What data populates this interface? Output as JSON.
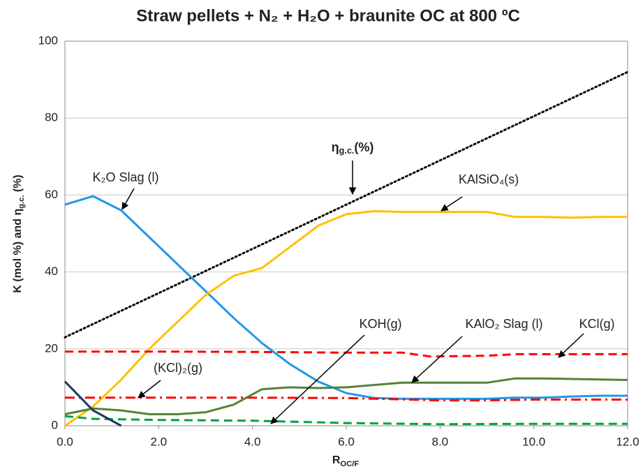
{
  "chart_data": {
    "type": "line",
    "title": "Straw pellets + N₂ + H₂O + braunite OC at 800 ºC",
    "xlabel": [
      "R",
      "OC/F"
    ],
    "ylabel": [
      "K (mol %) and η",
      "g.c.",
      " (%)"
    ],
    "xlim": [
      0,
      12
    ],
    "ylim": [
      0,
      100
    ],
    "xticks": [
      {
        "value": 0,
        "label": "0.0"
      },
      {
        "value": 2,
        "label": "2.0"
      },
      {
        "value": 4,
        "label": "4.0"
      },
      {
        "value": 6,
        "label": "6.0"
      },
      {
        "value": 8,
        "label": "8.0"
      },
      {
        "value": 10,
        "label": "10.0"
      },
      {
        "value": 12,
        "label": "12.0"
      }
    ],
    "yticks": [
      0,
      20,
      40,
      60,
      80,
      100
    ],
    "grid": true,
    "series": [
      {
        "color": "#000000",
        "style": "dotted",
        "x": [
          0,
          12
        ],
        "values": [
          23,
          92
        ]
      },
      {
        "color": "#2196e8",
        "style": "solid",
        "x": [
          0,
          0.6,
          1.2,
          1.8,
          2.4,
          3.0,
          3.6,
          4.2,
          4.8,
          5.4,
          6.0,
          6.6,
          7.2,
          8.0,
          9.0,
          9.6,
          10.2,
          10.8,
          11.4,
          12
        ],
        "values": [
          57.5,
          59.7,
          56,
          49,
          42,
          35,
          28,
          21.5,
          16,
          11.5,
          8.5,
          7.2,
          7,
          7,
          7,
          7.3,
          7.3,
          7.6,
          7.8,
          7.8
        ]
      },
      {
        "color": "#ffc000",
        "style": "solid",
        "x": [
          0,
          0.6,
          1.2,
          1.8,
          2.4,
          3.0,
          3.6,
          4.2,
          4.8,
          5.4,
          6.0,
          6.6,
          7.2,
          8.0,
          9.0,
          9.6,
          10.2,
          10.8,
          11.4,
          12
        ],
        "values": [
          0,
          5,
          12,
          20,
          27,
          34,
          39,
          41,
          46.5,
          52,
          55,
          55.8,
          55.6,
          55.6,
          55.6,
          54.3,
          54.3,
          54.1,
          54.3,
          54.3
        ]
      },
      {
        "color": "#ff0000",
        "style": "dashed",
        "x": [
          0,
          2,
          4,
          6,
          7.2,
          7.8,
          9,
          9.6,
          12
        ],
        "values": [
          19.3,
          19.3,
          19.2,
          19,
          19,
          18,
          18.2,
          18.6,
          18.6
        ]
      },
      {
        "color": "#ff0000",
        "style": "dashdot",
        "x": [
          0,
          4,
          6,
          8,
          9,
          10,
          12
        ],
        "values": [
          7.3,
          7.3,
          7.2,
          6.6,
          6.6,
          6.8,
          6.8
        ]
      },
      {
        "color": "#548235",
        "style": "solid",
        "x": [
          0,
          0.6,
          1.2,
          1.8,
          2.4,
          3.0,
          3.6,
          4.2,
          4.8,
          5.4,
          6.0,
          7.2,
          9.0,
          9.6,
          10.2,
          12
        ],
        "values": [
          3,
          4.5,
          4,
          3,
          3,
          3.5,
          5.5,
          9.5,
          10,
          9.8,
          10,
          11.2,
          11.2,
          12.3,
          12.3,
          11.9
        ]
      },
      {
        "color": "#00a040",
        "style": "dashed",
        "x": [
          0,
          0.6,
          2,
          4,
          6,
          8,
          10,
          12
        ],
        "values": [
          2.5,
          1.8,
          1.5,
          1.3,
          0.7,
          0.4,
          0.5,
          0.5
        ]
      },
      {
        "color": "#1f3864",
        "style": "solid",
        "x": [
          0,
          0.6,
          1.2
        ],
        "values": [
          11.5,
          4,
          0
        ]
      }
    ],
    "annotations": [
      [
        "K₂O Slag (l)"
      ],
      [
        "KAlSiO₄(s)"
      ],
      [
        "η",
        "g.c.",
        "(%)"
      ],
      [
        "KOH(g)"
      ],
      [
        "KAlO₂ Slag (l)"
      ],
      [
        "KCl(g)"
      ],
      [
        "(KCl)₂(g)"
      ]
    ]
  }
}
